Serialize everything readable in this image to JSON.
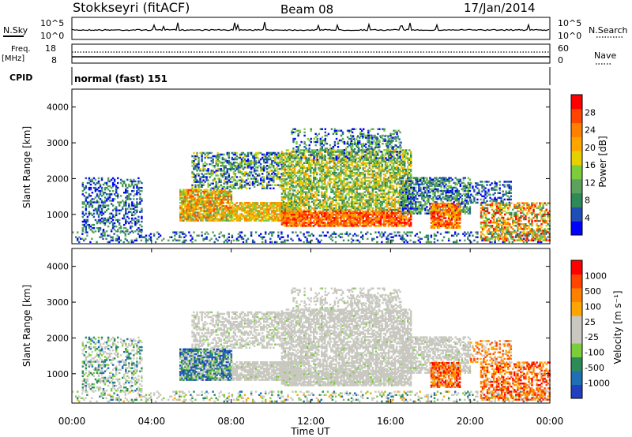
{
  "header": {
    "station": "Stokkseyri (fitACF)",
    "beam": "Beam 08",
    "date": "17/Jan/2014"
  },
  "strip_labels": {
    "nsky": "N.Sky",
    "nsearch": "N.Search",
    "freq_line1": "Freq.",
    "freq_line2": "[MHz]",
    "nave": "Nave",
    "cpid": "CPID",
    "cpid_value": "normal (fast) 151",
    "nsky_ticks": [
      "10^5",
      "10^0"
    ],
    "nsearch_ticks": [
      "10^5",
      "10^0"
    ],
    "freq_ticks": [
      "18",
      "8"
    ],
    "nave_ticks": [
      "60",
      "0"
    ]
  },
  "colors": {
    "power": [
      "#0000ff",
      "#1f4fb4",
      "#2e8b57",
      "#5ca25c",
      "#7ccd3c",
      "#e6d000",
      "#ffa500",
      "#ff7f00",
      "#ff4500",
      "#ff0000"
    ],
    "velocity": [
      "#ff0000",
      "#ff4500",
      "#ff7f00",
      "#ffa500",
      "#c8c8c0",
      "#c8c8c0",
      "#7ccd3c",
      "#2e8b57",
      "#1f6fb4",
      "#2040c0"
    ],
    "ground_scatter": "#c8c8c0"
  },
  "chart_data": [
    {
      "type": "heatmap",
      "name": "power",
      "ylabel": "Slant Range [km]",
      "ylim": [
        180,
        4500
      ],
      "yticks": [
        "1000",
        "2000",
        "3000",
        "4000"
      ],
      "colorbar_label": "Power [dB]",
      "colorbar_ticks": [
        "28",
        "24",
        "20",
        "16",
        "12",
        "8",
        "4"
      ],
      "colorbar_range": [
        0,
        30
      ]
    },
    {
      "type": "heatmap",
      "name": "velocity",
      "ylabel": "Slant Range [km]",
      "ylim": [
        180,
        4500
      ],
      "yticks": [
        "1000",
        "2000",
        "3000",
        "4000"
      ],
      "colorbar_label": "Velocity [m s⁻¹]",
      "colorbar_ticks": [
        "1000",
        "500",
        "100",
        "25",
        "-25",
        "-100",
        "-500",
        "-1000"
      ]
    }
  ],
  "xaxis": {
    "label": "Time UT",
    "ticks": [
      "00:00",
      "04:00",
      "08:00",
      "12:00",
      "16:00",
      "20:00",
      "00:00"
    ],
    "xlim": [
      0,
      24
    ]
  }
}
